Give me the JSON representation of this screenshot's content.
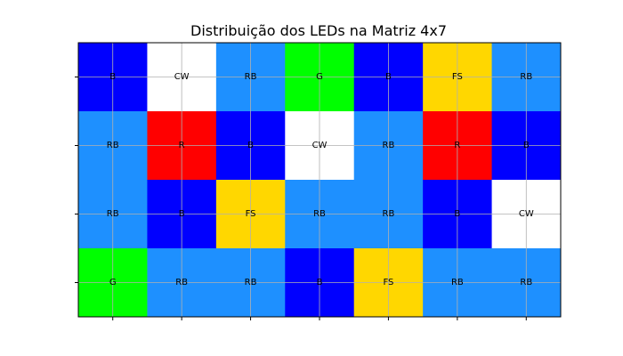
{
  "chart_data": {
    "type": "heatmap",
    "title": "Distribuição dos LEDs na Matriz 4x7",
    "rows": 4,
    "cols": 7,
    "xlabel": "",
    "ylabel": "",
    "grid": true,
    "tick_labels_shown": false,
    "colors": {
      "B": "#0000ff",
      "CW": "#ffffff",
      "RB": "#1e90ff",
      "G": "#00ff00",
      "FS": "#ffd700",
      "R": "#ff0000"
    },
    "cells": [
      [
        "B",
        "CW",
        "RB",
        "G",
        "B",
        "FS",
        "RB"
      ],
      [
        "RB",
        "R",
        "B",
        "CW",
        "RB",
        "R",
        "B"
      ],
      [
        "RB",
        "B",
        "FS",
        "RB",
        "RB",
        "B",
        "CW"
      ],
      [
        "G",
        "RB",
        "RB",
        "B",
        "FS",
        "RB",
        "RB"
      ]
    ]
  }
}
